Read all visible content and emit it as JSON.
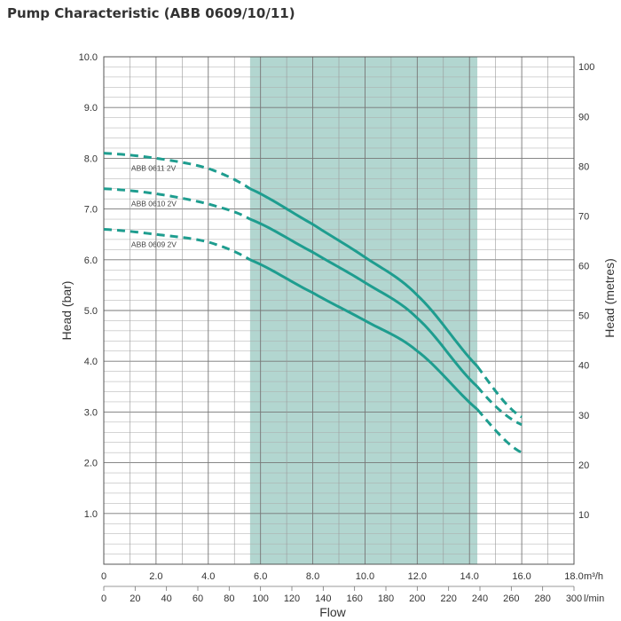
{
  "title": "Pump Characteristic (ABB 0609/10/11)",
  "colors": {
    "curve": "#1e9d8f",
    "band": "#b2d6d0",
    "grid": "#888888",
    "text": "#333333"
  },
  "chart_data": {
    "type": "line",
    "title": "Pump Characteristic (ABB 0609/10/11)",
    "xlabel": "Flow",
    "ylabel_left": "Head (bar)",
    "ylabel_right": "Head (metres)",
    "x_primary": {
      "unit": "m³/h",
      "range": [
        0,
        18
      ],
      "ticks": [
        "0",
        "2.0",
        "4.0",
        "6.0",
        "8.0",
        "10.0",
        "12.0",
        "14.0",
        "16.0",
        "18.0"
      ],
      "tick_values": [
        0,
        2,
        4,
        6,
        8,
        10,
        12,
        14,
        16,
        18
      ]
    },
    "x_secondary": {
      "unit": "l/min",
      "range": [
        0,
        300
      ],
      "ticks": [
        "0",
        "20",
        "40",
        "60",
        "80",
        "100",
        "120",
        "140",
        "160",
        "180",
        "200",
        "220",
        "240",
        "260",
        "280",
        "300"
      ],
      "tick_values": [
        0,
        20,
        40,
        60,
        80,
        100,
        120,
        140,
        160,
        180,
        200,
        220,
        240,
        260,
        280,
        300
      ]
    },
    "y_left": {
      "unit": "bar",
      "range": [
        0,
        10
      ],
      "ticks": [
        "1.0",
        "2.0",
        "3.0",
        "4.0",
        "5.0",
        "6.0",
        "7.0",
        "8.0",
        "9.0",
        "10.0"
      ],
      "tick_values": [
        1,
        2,
        3,
        4,
        5,
        6,
        7,
        8,
        9,
        10
      ]
    },
    "y_right": {
      "unit": "metres",
      "range": [
        0,
        102
      ],
      "ticks": [
        "10",
        "20",
        "30",
        "40",
        "50",
        "60",
        "70",
        "80",
        "90",
        "100"
      ],
      "tick_values": [
        10,
        20,
        30,
        40,
        50,
        60,
        70,
        80,
        90,
        100
      ]
    },
    "operating_range_m3h": [
      5.6,
      14.3
    ],
    "grid": true,
    "series": [
      {
        "name": "ABB 0611 2V",
        "label": "ABB 0611 2V",
        "points": [
          [
            0,
            8.1
          ],
          [
            2,
            8.0
          ],
          [
            4,
            7.8
          ],
          [
            5.6,
            7.4
          ],
          [
            8,
            6.7
          ],
          [
            10,
            6.05
          ],
          [
            12,
            5.3
          ],
          [
            14.3,
            3.9
          ],
          [
            16,
            2.9
          ]
        ],
        "solid_range": [
          5.6,
          14.3
        ]
      },
      {
        "name": "ABB 0610 2V",
        "label": "ABB 0610 2V",
        "points": [
          [
            0,
            7.4
          ],
          [
            2,
            7.3
          ],
          [
            4,
            7.1
          ],
          [
            5.6,
            6.8
          ],
          [
            8,
            6.15
          ],
          [
            10,
            5.55
          ],
          [
            12,
            4.85
          ],
          [
            14.3,
            3.5
          ],
          [
            16,
            2.75
          ]
        ],
        "solid_range": [
          5.6,
          14.3
        ]
      },
      {
        "name": "ABB 0609 2V",
        "label": "ABB 0609 2V",
        "points": [
          [
            0,
            6.6
          ],
          [
            2,
            6.5
          ],
          [
            4,
            6.35
          ],
          [
            5.6,
            6.0
          ],
          [
            8,
            5.35
          ],
          [
            10,
            4.8
          ],
          [
            12,
            4.2
          ],
          [
            14.3,
            3.05
          ],
          [
            16,
            2.2
          ]
        ],
        "solid_range": [
          5.6,
          14.3
        ]
      }
    ]
  }
}
